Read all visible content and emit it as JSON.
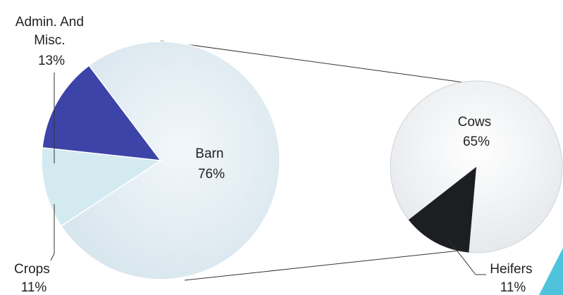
{
  "chart_data": [
    {
      "type": "pie",
      "title": "",
      "slices": [
        {
          "label_lines": [
            "Barn",
            "76%"
          ],
          "value": 76,
          "color": "#e4eef3"
        },
        {
          "label_lines": [
            "Crops",
            "11%"
          ],
          "value": 11,
          "color": "#d2eaf0"
        },
        {
          "label_lines": [
            "Admin. And",
            "Misc.",
            "13%"
          ],
          "value": 13,
          "color": "#3c44a8"
        }
      ]
    },
    {
      "type": "pie",
      "title": "",
      "slices": [
        {
          "label_lines": [
            "Cows",
            "65%"
          ],
          "value": 65,
          "color": "#f4f5f6"
        },
        {
          "label_lines": [
            "Heifers",
            "11%"
          ],
          "value": 11,
          "color": "#1c1e22"
        }
      ]
    }
  ],
  "colors": {
    "accent": "#4fc3dc"
  }
}
